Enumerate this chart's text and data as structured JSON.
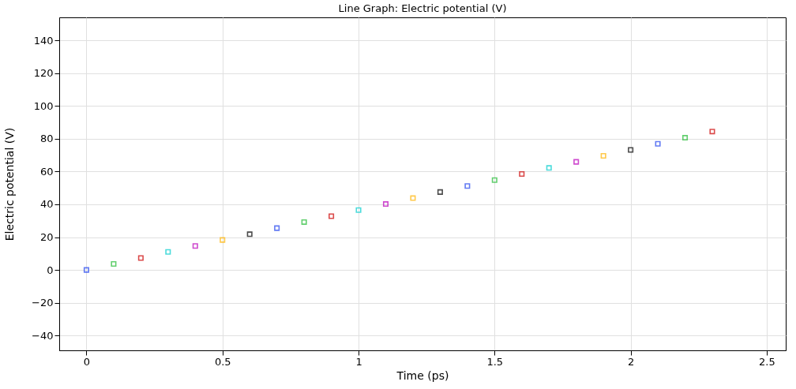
{
  "chart_data": {
    "type": "scatter",
    "title": "Line Graph: Electric potential (V)",
    "xlabel": "Time (ps)",
    "ylabel": "Electric potential (V)",
    "x": [
      0,
      0.1,
      0.2,
      0.3,
      0.4,
      0.5,
      0.6,
      0.7,
      0.8,
      0.9,
      1.0,
      1.1,
      1.2,
      1.3,
      1.4,
      1.5,
      1.6,
      1.7,
      1.8,
      1.9,
      2.0,
      2.1,
      2.2,
      2.3
    ],
    "series": [
      {
        "values": [
          0,
          3.7,
          7.3,
          11,
          14.6,
          18.3,
          21.8,
          25.5,
          29.2,
          32.8,
          36.5,
          40.2,
          43.8,
          47.5,
          51.2,
          54.8,
          58.5,
          62.2,
          65.9,
          69.6,
          73.2,
          76.9,
          80.6,
          84.4
        ],
        "colors": [
          "#2244ee",
          "#22bb33",
          "#cc0000",
          "#00cccc",
          "#bb00bb",
          "#ffb300",
          "#000000",
          "#2244ee",
          "#22bb33",
          "#cc0000",
          "#00cccc",
          "#bb00bb",
          "#ffb300",
          "#000000",
          "#2244ee",
          "#22bb33",
          "#cc0000",
          "#00cccc",
          "#bb00bb",
          "#ffb300",
          "#000000",
          "#2244ee",
          "#22bb33",
          "#cc0000"
        ]
      }
    ],
    "xlim": [
      -0.1,
      2.57
    ],
    "xticks": [
      0,
      0.5,
      1,
      1.5,
      2,
      2.5
    ],
    "ylim": [
      -49,
      154
    ],
    "yticks": [
      -40,
      -20,
      0,
      20,
      40,
      60,
      80,
      100,
      120,
      140
    ],
    "grid": true,
    "marker": "square"
  }
}
